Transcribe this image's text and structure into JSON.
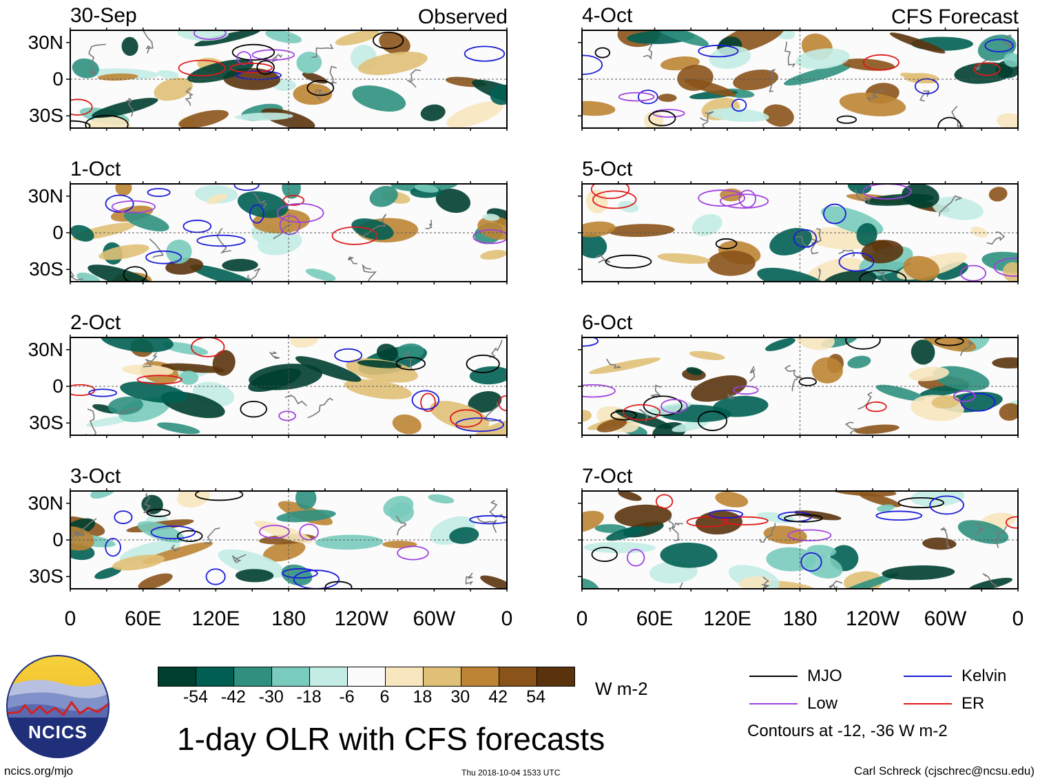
{
  "panels": {
    "observed": {
      "label": "Observed",
      "dates": [
        "30-Sep",
        "1-Oct",
        "2-Oct",
        "3-Oct"
      ]
    },
    "forecast": {
      "label": "CFS Forecast",
      "dates": [
        "4-Oct",
        "5-Oct",
        "6-Oct",
        "7-Oct"
      ]
    }
  },
  "lat_labels": [
    "30N",
    "0",
    "30S"
  ],
  "lon_labels": [
    "0",
    "60E",
    "120E",
    "180",
    "120W",
    "60W",
    "0"
  ],
  "colorbar": {
    "ticks": [
      "-54",
      "-42",
      "-30",
      "-18",
      "-6",
      "6",
      "18",
      "30",
      "42",
      "54"
    ],
    "units": "W m-2",
    "colors": [
      "#003f30",
      "#005f52",
      "#2f9080",
      "#78cbbd",
      "#c2ece4",
      "#fbfbfb",
      "#f7e6be",
      "#e0c077",
      "#bd8434",
      "#8a5319",
      "#5a330d"
    ]
  },
  "legend": {
    "items": [
      {
        "label": "MJO",
        "color": "#000000"
      },
      {
        "label": "Kelvin",
        "color": "#1a1ad8"
      },
      {
        "label": "Low",
        "color": "#a040e0"
      },
      {
        "label": "ER",
        "color": "#e01818"
      }
    ],
    "note": "Contours at -12, -36 W m-2"
  },
  "title": "1-day OLR with CFS forecasts",
  "logo_text": "NCICS",
  "footer": {
    "url": "ncics.org/mjo",
    "timestamp": "Thu 2018-10-04 1533 UTC",
    "author": "Carl Schreck (cjschrec@ncsu.edu)"
  }
}
